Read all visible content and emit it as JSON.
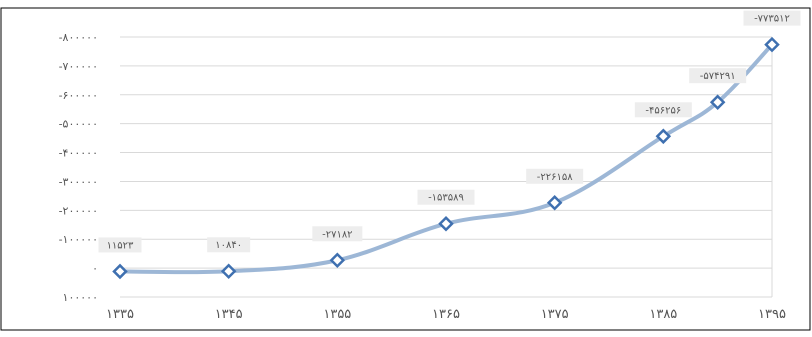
{
  "chart_data": {
    "type": "line",
    "title": "",
    "xlabel": "",
    "ylabel": "",
    "colors": {
      "line": "#9db7d6",
      "marker": "#3f70b0",
      "border": "#000000",
      "grid": "#d9d9d9"
    },
    "grid": true,
    "legend": "none",
    "y_axis": {
      "min": -800000,
      "max": 100000,
      "ticks": [
        -800000,
        -700000,
        -600000,
        -500000,
        -400000,
        -300000,
        -200000,
        -100000,
        0,
        100000
      ],
      "tick_labels": [
        "-۸۰۰۰۰۰",
        "-۷۰۰۰۰۰",
        "-۶۰۰۰۰۰",
        "-۵۰۰۰۰۰",
        "-۴۰۰۰۰۰",
        "-۳۰۰۰۰۰",
        "-۲۰۰۰۰۰",
        "-۱۰۰۰۰۰",
        "۰",
        "۱۰۰۰۰۰"
      ]
    },
    "x_axis": {
      "min": 1335,
      "max": 1395,
      "ticks": [
        1335,
        1345,
        1355,
        1365,
        1375,
        1385,
        1395
      ],
      "tick_labels": [
        "۱۳۳۵",
        "۱۳۴۵",
        "۱۳۵۵",
        "۱۳۶۵",
        "۱۳۷۵",
        "۱۳۸۵",
        "۱۳۹۵"
      ]
    },
    "series": [
      {
        "points": [
          {
            "x": 1335,
            "y": 11523,
            "label": "۱۱۵۲۳"
          },
          {
            "x": 1345,
            "y": 10840,
            "label": "۱۰۸۴۰"
          },
          {
            "x": 1355,
            "y": -27182,
            "label": "-۲۷۱۸۲"
          },
          {
            "x": 1365,
            "y": -153589,
            "label": "-۱۵۳۵۸۹"
          },
          {
            "x": 1375,
            "y": -226158,
            "label": "-۲۲۶۱۵۸"
          },
          {
            "x": 1385,
            "y": -456256,
            "label": "-۴۵۶۲۵۶"
          },
          {
            "x": 1390,
            "y": -574291,
            "label": "-۵۷۴۲۹۱"
          },
          {
            "x": 1395,
            "y": -773512,
            "label": "-۷۷۳۵۱۲"
          }
        ]
      }
    ]
  }
}
